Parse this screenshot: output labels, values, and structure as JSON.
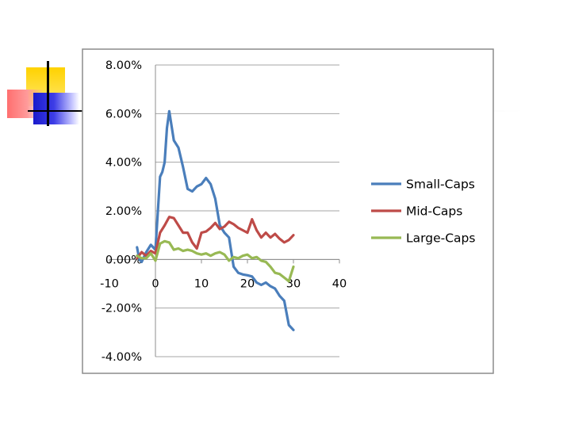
{
  "chart_data": {
    "type": "line",
    "xlim": [
      -10,
      40
    ],
    "ylim": [
      -4,
      8
    ],
    "x_ticks": [
      "-10",
      "0",
      "10",
      "20",
      "30",
      "40"
    ],
    "y_ticks": [
      "8.00%",
      "6.00%",
      "4.00%",
      "2.00%",
      "0.00%",
      "-2.00%",
      "-4.00%"
    ],
    "grid": true,
    "legend": "right",
    "series": [
      {
        "name": "Small-Caps",
        "color": "#4a7ebb",
        "x": [
          -4,
          -3.5,
          -3,
          -2,
          -1,
          0,
          1,
          1.5,
          2,
          2.5,
          3,
          4,
          5,
          6,
          7,
          8,
          9,
          10,
          11,
          12,
          13,
          14,
          15,
          16,
          17,
          18,
          19,
          20,
          21,
          22,
          23,
          24,
          25,
          26,
          27,
          28,
          29,
          30
        ],
        "y": [
          0.5,
          0.0,
          -0.1,
          0.3,
          0.6,
          0.4,
          3.4,
          3.6,
          4.0,
          5.4,
          6.1,
          4.9,
          4.6,
          3.8,
          2.9,
          2.8,
          3.0,
          3.1,
          3.35,
          3.1,
          2.5,
          1.4,
          1.1,
          0.9,
          -0.3,
          -0.55,
          -0.62,
          -0.65,
          -0.7,
          -0.95,
          -1.05,
          -0.95,
          -1.1,
          -1.2,
          -1.5,
          -1.7,
          -2.7,
          -2.9
        ]
      },
      {
        "name": "Mid-Caps",
        "color": "#be4b48",
        "x": [
          -4,
          -3,
          -2,
          -1,
          0,
          1,
          2,
          3,
          4,
          5,
          6,
          7,
          8,
          9,
          10,
          11,
          12,
          13,
          14,
          15,
          16,
          17,
          18,
          19,
          20,
          21,
          22,
          23,
          24,
          25,
          26,
          27,
          28,
          29,
          30
        ],
        "y": [
          0.05,
          0.3,
          0.15,
          0.35,
          0.25,
          1.1,
          1.4,
          1.75,
          1.7,
          1.4,
          1.1,
          1.1,
          0.7,
          0.45,
          1.1,
          1.15,
          1.3,
          1.5,
          1.25,
          1.35,
          1.55,
          1.45,
          1.3,
          1.2,
          1.1,
          1.65,
          1.2,
          0.9,
          1.1,
          0.9,
          1.05,
          0.85,
          0.7,
          0.8,
          1.0
        ]
      },
      {
        "name": "Large-Caps",
        "color": "#98b954",
        "x": [
          -4,
          -3,
          -2,
          -1,
          0,
          1,
          2,
          3,
          4,
          5,
          6,
          7,
          8,
          9,
          10,
          11,
          12,
          13,
          14,
          15,
          16,
          17,
          18,
          19,
          20,
          21,
          22,
          23,
          24,
          25,
          26,
          27,
          28,
          29,
          30
        ],
        "y": [
          0.15,
          0.05,
          0.05,
          0.25,
          -0.05,
          0.65,
          0.75,
          0.7,
          0.4,
          0.45,
          0.35,
          0.4,
          0.35,
          0.25,
          0.2,
          0.25,
          0.15,
          0.25,
          0.3,
          0.2,
          -0.05,
          0.1,
          0.05,
          0.15,
          0.2,
          0.05,
          0.1,
          -0.05,
          -0.1,
          -0.3,
          -0.55,
          -0.6,
          -0.75,
          -0.9,
          -0.3
        ]
      }
    ]
  }
}
